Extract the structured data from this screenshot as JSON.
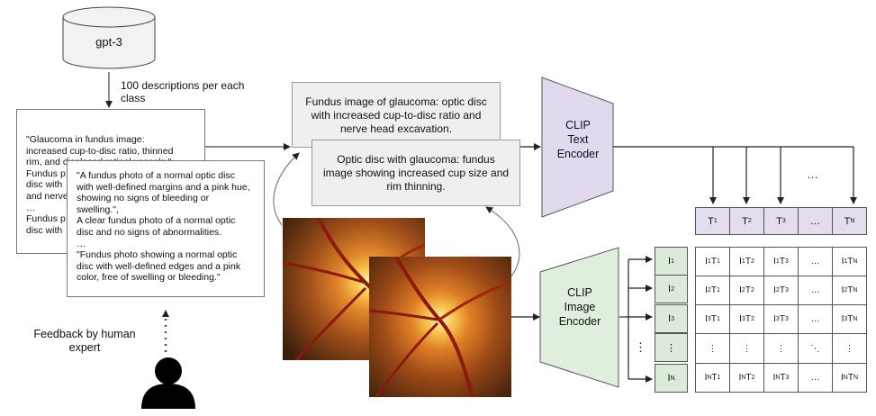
{
  "gpt": {
    "label": "gpt-3"
  },
  "descriptions_note": "100 descriptions per each class",
  "glaucoma_list": {
    "visible_lines": "\"Glaucoma in fundus image:\nincreased cup-to-disc ratio, thinned\nrim, and displaced retinal vessels.\"\nFundus p\ndisc with\nand nerve\n…\nFundus p\ndisc with"
  },
  "normal_list": {
    "text": "\"A fundus photo of a normal optic disc\nwith well-defined margins and a pink hue,\nshowing no signs of bleeding or\nswelling.\",\nA clear fundus photo of a normal optic\ndisc and no signs of abnormalities.\n…\n\"Fundus photo showing a normal optic\ndisc with well-defined edges and a pink\ncolor, free of swelling or bleeding.\""
  },
  "feedback": {
    "label": "Feedback by human\nexpert"
  },
  "prompt_back": {
    "text": "Fundus image of glaucoma: optic disc\nwith increased cup-to-disc ratio and\nnerve head excavation."
  },
  "prompt_front": {
    "text": "Optic disc with glaucoma: fundus\nimage showing increased cup size and\nrim thinning."
  },
  "text_encoder": {
    "label": "CLIP\nText\nEncoder",
    "color": "#e3d9ef"
  },
  "image_encoder": {
    "label": "CLIP\nImage\nEncoder",
    "color": "#dfeedd"
  },
  "ellipsis": "…",
  "vdots": "⋮",
  "ddots": "⋱"
}
